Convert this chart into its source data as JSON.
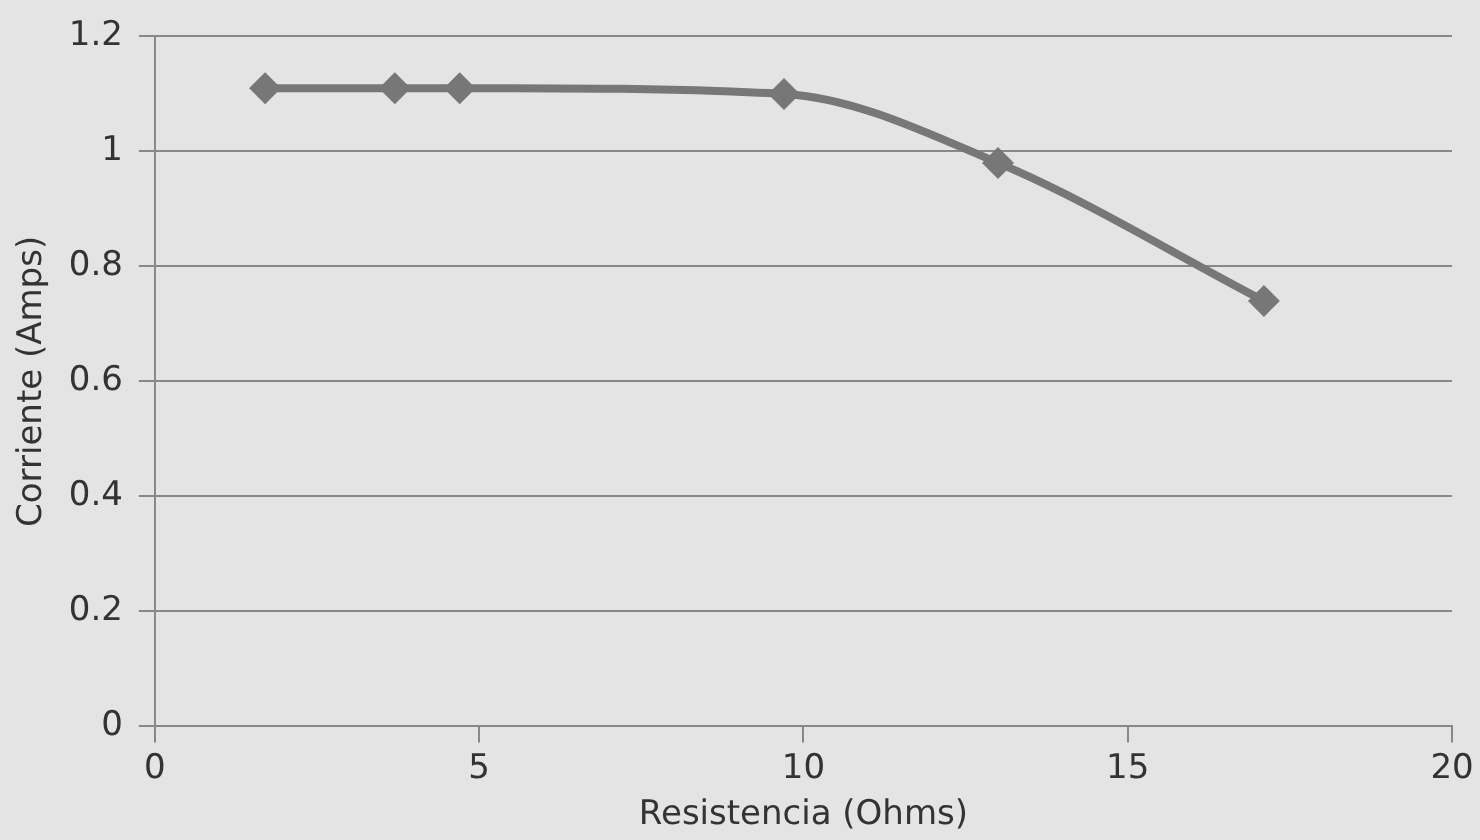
{
  "chart_data": {
    "type": "line",
    "xlabel": "Resistencia (Ohms)",
    "ylabel": "Corriente (Amps)",
    "x": [
      1.7,
      3.7,
      4.7,
      9.7,
      13.0,
      17.1
    ],
    "series": [
      {
        "color": "#777777",
        "values": [
          1.11,
          1.11,
          1.11,
          1.1,
          0.98,
          0.74
        ]
      }
    ],
    "xlim": [
      0,
      20
    ],
    "xticks": [
      0,
      5,
      10,
      15,
      20
    ],
    "ylim": [
      0,
      1.2
    ],
    "yticks": [
      0,
      0.2,
      0.4,
      0.6,
      0.8,
      1,
      1.2
    ],
    "grid": "y",
    "legend": false,
    "marker": "diamond",
    "line_style": "solid"
  }
}
